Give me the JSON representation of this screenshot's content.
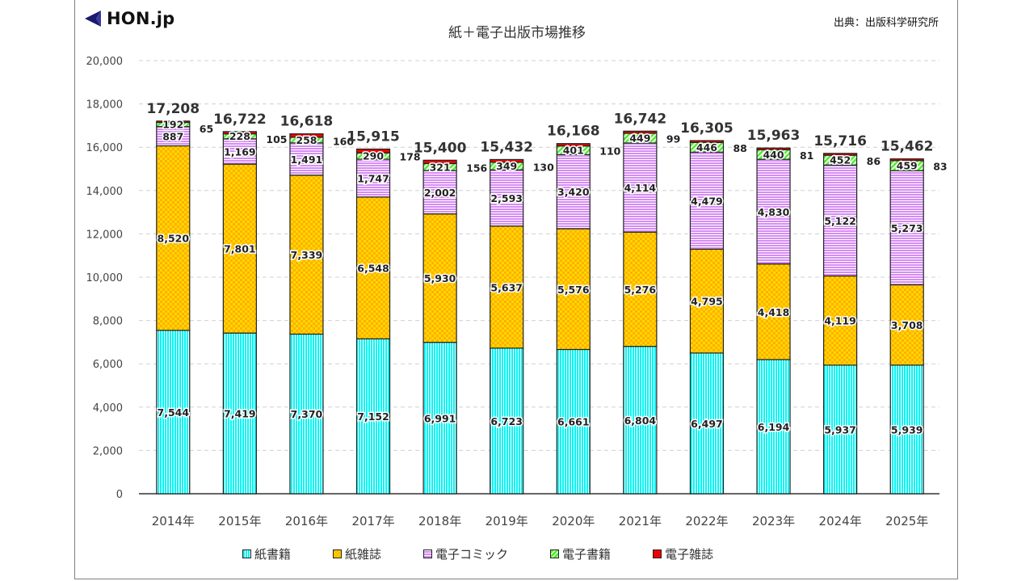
{
  "header": {
    "logo_text": "HON.jp",
    "source": "出典：出版科学研究所"
  },
  "colors": {
    "paper_books": "#00f5f5",
    "paper_magazines": "#ffd700",
    "digital_comics": "#d58cf5",
    "digital_books": "#55ee33",
    "digital_magazines": "#ee0000",
    "logo": "#1a1a6e"
  },
  "chart_data": {
    "type": "bar",
    "stacked": true,
    "title": "紙＋電子出版市場推移",
    "xlabel": "",
    "ylabel": "",
    "ylim": [
      0,
      20000
    ],
    "yticks": [
      0,
      2000,
      4000,
      6000,
      8000,
      10000,
      12000,
      14000,
      16000,
      18000,
      20000
    ],
    "ytick_labels": [
      "0",
      "2,000",
      "4,000",
      "6,000",
      "8,000",
      "10,000",
      "12,000",
      "14,000",
      "16,000",
      "18,000",
      "20,000"
    ],
    "grid": true,
    "legend_position": "bottom",
    "categories": [
      "2014年",
      "2015年",
      "2016年",
      "2017年",
      "2018年",
      "2019年",
      "2020年",
      "2021年",
      "2022年",
      "2023年",
      "2024年",
      "2025年"
    ],
    "series": [
      {
        "name": "紙書籍",
        "key": "paper_books",
        "values": [
          7544,
          7419,
          7370,
          7152,
          6991,
          6723,
          6661,
          6804,
          6497,
          6194,
          5937,
          5939
        ]
      },
      {
        "name": "紙雑誌",
        "key": "paper_magazines",
        "values": [
          8520,
          7801,
          7339,
          6548,
          5930,
          5637,
          5576,
          5276,
          4795,
          4418,
          4119,
          3708
        ]
      },
      {
        "name": "電子コミック",
        "key": "digital_comics",
        "values": [
          887,
          1169,
          1491,
          1747,
          2002,
          2593,
          3420,
          4114,
          4479,
          4830,
          5122,
          5273
        ]
      },
      {
        "name": "電子書籍",
        "key": "digital_books",
        "values": [
          192,
          228,
          258,
          290,
          321,
          349,
          401,
          449,
          446,
          440,
          452,
          459
        ]
      },
      {
        "name": "電子雑誌",
        "key": "digital_magazines",
        "values": [
          65,
          105,
          160,
          178,
          156,
          130,
          110,
          99,
          88,
          81,
          86,
          83
        ]
      }
    ],
    "totals": [
      17208,
      16722,
      16618,
      15915,
      15400,
      15432,
      16168,
      16742,
      16305,
      15963,
      15716,
      15462
    ],
    "total_labels": [
      "17,208",
      "16,722",
      "16,618",
      "15,915",
      "15,400",
      "15,432",
      "16,168",
      "16,742",
      "16,305",
      "15,963",
      "15,716",
      "15,462"
    ]
  }
}
